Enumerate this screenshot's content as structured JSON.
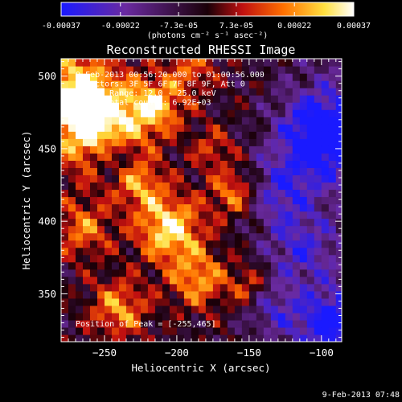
{
  "chart_data": {
    "type": "heatmap",
    "title": "Reconstructed RHESSI Image",
    "xlabel": "Heliocentric X (arcsec)",
    "ylabel": "Heliocentric Y (arcsec)",
    "xlim": [
      -280,
      -86
    ],
    "ylim": [
      317,
      512
    ],
    "x_ticks": [
      -250,
      -200,
      -150,
      -100
    ],
    "y_ticks": [
      350,
      400,
      450,
      500
    ],
    "colorbar": {
      "range": [
        -0.00037,
        0.00037
      ],
      "ticks": [
        -0.00037,
        -0.00022,
        -7.3e-05,
        7.3e-05,
        0.00022,
        0.00037
      ],
      "tick_labels": [
        "-0.00037",
        "-0.00022",
        "-7.3e-05",
        "7.3e-05",
        "0.00022",
        "0.00037"
      ],
      "unit_label": "(photons cm⁻² s⁻¹ asec⁻²)",
      "colors": [
        "#1a1aff",
        "#6a2aa0",
        "#1a0008",
        "#c01010",
        "#ff7000",
        "#ffe040",
        "#ffffff"
      ]
    },
    "annotations": [
      "9-Feb-2013 00:56:20.000 to 01:00:56.000",
      "Detectors: 3F 5F 6F 7F 8F 9F, Att 0",
      "Energy Range: 12.0 - 25.0 keV",
      "Clean    Total counts: 6.92E+03"
    ],
    "peak_label": "Position of Peak = [-255,465]",
    "timestamp": "9-Feb-2013 07:48"
  }
}
